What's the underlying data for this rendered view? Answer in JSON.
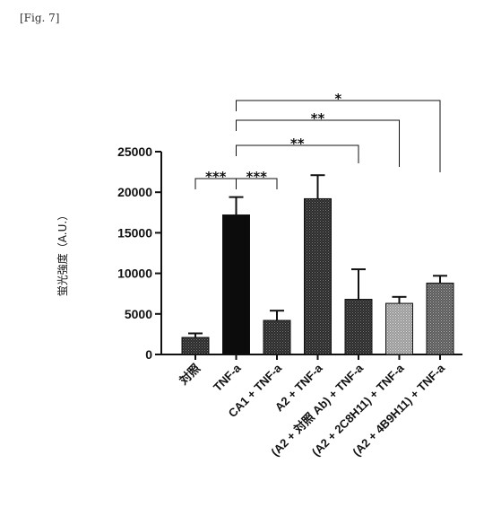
{
  "figure_label": "[Fig. 7]",
  "chart_data": {
    "type": "bar",
    "title": "",
    "xlabel": "",
    "ylabel": "蛍光強度（A.U.）",
    "ylim": [
      0,
      25000
    ],
    "yticks": [
      0,
      5000,
      10000,
      15000,
      20000,
      25000
    ],
    "ytick_labels": [
      "0",
      "5000",
      "10000",
      "15000",
      "20000",
      "25000"
    ],
    "categories": [
      "対照",
      "TNF-a",
      "CA1 + TNF-a",
      "A2 + TNF-a",
      "(A2 + 対照 Ab) + TNF-a",
      "(A2 + 2C8H11) + TNF-a",
      "(A2 + 4B9H11) + TNF-a"
    ],
    "values": [
      2100,
      17200,
      4200,
      19200,
      6800,
      6300,
      8800
    ],
    "errors": [
      500,
      2200,
      1200,
      2900,
      3700,
      800,
      900
    ],
    "bar_fills": [
      "dense",
      "black",
      "dense",
      "dense",
      "dense",
      "light",
      "medium"
    ],
    "significance": [
      {
        "from": 0,
        "to": 1,
        "label": "***"
      },
      {
        "from": 1,
        "to": 2,
        "label": "***"
      },
      {
        "from": 1,
        "to": 4,
        "label": "**"
      },
      {
        "from": 1,
        "to": 5,
        "label": "**"
      },
      {
        "from": 1,
        "to": 6,
        "label": "*"
      }
    ],
    "grid": false,
    "legend": "none"
  }
}
